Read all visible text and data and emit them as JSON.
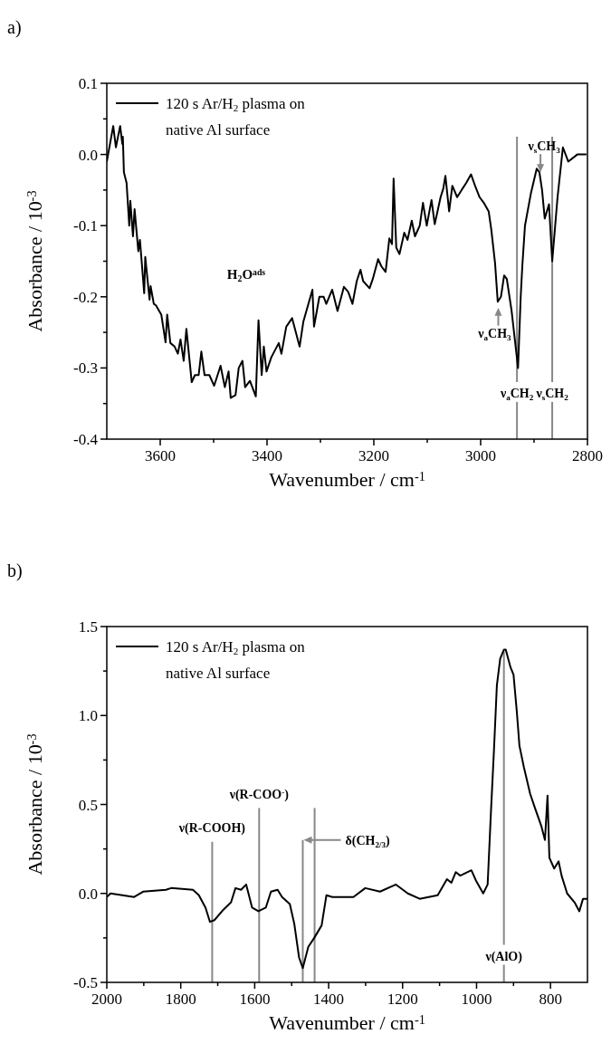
{
  "chart_data": [
    {
      "type": "line",
      "title": "a)",
      "xlabel": "Wavenumber / cm$^{-1}$",
      "ylabel": "Absorbance / 10$^{-3}$",
      "xlim": [
        3700,
        2800
      ],
      "ylim": [
        -0.4,
        0.1
      ],
      "xticks": [
        3600,
        {
          "value": 3500,
          "label": null
        },
        3400,
        {
          "value": 3300,
          "label": null
        },
        3200,
        {
          "value": 3100,
          "label": null
        },
        3000,
        {
          "value": 2900,
          "label": null
        },
        2800
      ],
      "yticks": [
        -0.4,
        {
          "value": -0.35,
          "label": null
        },
        -0.3,
        {
          "value": -0.25,
          "label": null
        },
        -0.2,
        {
          "value": -0.15,
          "label": null
        },
        -0.1,
        {
          "value": -0.05,
          "label": null
        },
        {
          "value": 0,
          "label": "0.0"
        },
        {
          "value": 0.05,
          "label": null
        },
        0.1
      ],
      "legend": "top left",
      "x": [
        3700,
        3688,
        3683,
        3675,
        3671,
        3670,
        3668,
        3663,
        3658,
        3656,
        3651,
        3648,
        3641,
        3638,
        3630,
        3628,
        3620,
        3618,
        3612,
        3608,
        3598,
        3590,
        3587,
        3581,
        3573,
        3567,
        3562,
        3556,
        3551,
        3541,
        3535,
        3528,
        3523,
        3517,
        3508,
        3499,
        3487,
        3479,
        3472,
        3468,
        3459,
        3453,
        3446,
        3441,
        3432,
        3421,
        3416,
        3410,
        3406,
        3401,
        3392,
        3378,
        3373,
        3364,
        3353,
        3339,
        3332,
        3315,
        3312,
        3302,
        3294,
        3289,
        3278,
        3268,
        3256,
        3248,
        3240,
        3232,
        3225,
        3220,
        3208,
        3202,
        3192,
        3186,
        3178,
        3171,
        3166,
        3163,
        3158,
        3152,
        3143,
        3137,
        3129,
        3123,
        3114,
        3108,
        3101,
        3092,
        3086,
        3075,
        3070,
        3066,
        3059,
        3053,
        3044,
        3034,
        3027,
        3018,
        3010,
        3002,
        2994,
        2985,
        2980,
        2973,
        2968,
        2962,
        2956,
        2951,
        2942,
        2930,
        2925,
        2922,
        2917,
        2906,
        2895,
        2890,
        2885,
        2880,
        2872,
        2866,
        2856,
        2846,
        2836,
        2819,
        2802
      ],
      "series": [
        {
          "name": "120 s Ar/H$_{2}$ plasma on native Al surface",
          "color": "#000000",
          "values": [
            -0.01,
            0.04,
            0.01,
            0.04,
            0.015,
            0.025,
            -0.025,
            -0.04,
            -0.1,
            -0.065,
            -0.115,
            -0.077,
            -0.136,
            -0.12,
            -0.195,
            -0.144,
            -0.204,
            -0.185,
            -0.21,
            -0.212,
            -0.225,
            -0.264,
            -0.225,
            -0.265,
            -0.27,
            -0.28,
            -0.26,
            -0.29,
            -0.245,
            -0.32,
            -0.31,
            -0.31,
            -0.277,
            -0.31,
            -0.31,
            -0.325,
            -0.297,
            -0.327,
            -0.305,
            -0.342,
            -0.338,
            -0.3,
            -0.29,
            -0.327,
            -0.318,
            -0.34,
            -0.233,
            -0.31,
            -0.27,
            -0.305,
            -0.285,
            -0.265,
            -0.28,
            -0.242,
            -0.23,
            -0.27,
            -0.235,
            -0.19,
            -0.242,
            -0.2,
            -0.2,
            -0.21,
            -0.19,
            -0.22,
            -0.186,
            -0.193,
            -0.21,
            -0.178,
            -0.162,
            -0.178,
            -0.188,
            -0.175,
            -0.147,
            -0.157,
            -0.165,
            -0.118,
            -0.126,
            -0.034,
            -0.131,
            -0.14,
            -0.11,
            -0.12,
            -0.093,
            -0.115,
            -0.1,
            -0.068,
            -0.1,
            -0.064,
            -0.098,
            -0.06,
            -0.048,
            -0.03,
            -0.08,
            -0.044,
            -0.06,
            -0.048,
            -0.04,
            -0.028,
            -0.045,
            -0.06,
            -0.068,
            -0.08,
            -0.106,
            -0.153,
            -0.207,
            -0.2,
            -0.17,
            -0.175,
            -0.22,
            -0.3,
            -0.2,
            -0.157,
            -0.1,
            -0.055,
            -0.02,
            -0.025,
            -0.05,
            -0.09,
            -0.07,
            -0.15,
            -0.06,
            0.01,
            -0.01,
            0.0,
            0.0
          ]
        }
      ],
      "ref_lines": [
        {
          "axis": "x",
          "value": 2932,
          "label": "ν$_{a}$CH$_{2}$",
          "color": "#888888"
        },
        {
          "axis": "x",
          "value": 2866,
          "label": "ν$_{s}$CH$_{2}$",
          "color": "#888888"
        }
      ],
      "annotations": [
        "H$_{2}$O$^{ads}$",
        {
          "text": "ν$_{a}$CH$_{3}$",
          "x": 2967,
          "y": -0.21
        },
        {
          "text": "ν$_{s}$CH$_{3}$",
          "x": 2888,
          "y": -0.03
        }
      ]
    },
    {
      "type": "line",
      "title": "b)",
      "xlabel": "Wavenumber / cm$^{-1}$",
      "ylabel": "Absorbance / 10$^{-3}$",
      "xlim": [
        2000,
        700
      ],
      "ylim": [
        -0.5,
        1.5
      ],
      "xticks": [
        2000,
        {
          "value": 1900,
          "label": null
        },
        1800,
        {
          "value": 1700,
          "label": null
        },
        1600,
        {
          "value": 1500,
          "label": null
        },
        1400,
        {
          "value": 1300,
          "label": null
        },
        1200,
        {
          "value": 1100,
          "label": null
        },
        1000,
        {
          "value": 900,
          "label": null
        },
        800
      ],
      "yticks": [
        -0.5,
        {
          "value": -0.25,
          "label": null
        },
        {
          "value": 0,
          "label": "0.0"
        },
        {
          "value": 0.25,
          "label": null
        },
        0.5,
        {
          "value": 0.75,
          "label": null
        },
        {
          "value": 1,
          "label": "1.0"
        },
        {
          "value": 1.25,
          "label": null
        },
        1.5
      ],
      "legend": "top left",
      "x": [
        2000,
        1990,
        1926,
        1902,
        1840,
        1826,
        1767,
        1751,
        1733,
        1721,
        1709,
        1684,
        1664,
        1652,
        1637,
        1623,
        1607,
        1590,
        1570,
        1556,
        1538,
        1526,
        1505,
        1493,
        1480,
        1470,
        1455,
        1439,
        1419,
        1406,
        1390,
        1333,
        1301,
        1261,
        1218,
        1186,
        1154,
        1105,
        1080,
        1068,
        1056,
        1044,
        1014,
        1001,
        982,
        970,
        961,
        953,
        945,
        936,
        926,
        921,
        908,
        900,
        891,
        884,
        872,
        855,
        842,
        825,
        815,
        808,
        803,
        790,
        778,
        770,
        755,
        735,
        722,
        712,
        700
      ],
      "series": [
        {
          "name": "120 s Ar/H$_{2}$ plasma on native Al surface",
          "color": "#000000",
          "values": [
            -0.02,
            0.0,
            -0.02,
            0.01,
            0.02,
            0.03,
            0.02,
            -0.01,
            -0.08,
            -0.16,
            -0.15,
            -0.09,
            -0.05,
            0.03,
            0.02,
            0.05,
            -0.08,
            -0.1,
            -0.08,
            0.01,
            0.02,
            -0.02,
            -0.06,
            -0.17,
            -0.36,
            -0.42,
            -0.3,
            -0.25,
            -0.18,
            -0.01,
            -0.02,
            -0.02,
            0.03,
            0.01,
            0.05,
            0.0,
            -0.03,
            -0.01,
            0.08,
            0.06,
            0.12,
            0.1,
            0.13,
            0.07,
            0.0,
            0.05,
            0.46,
            0.8,
            1.17,
            1.32,
            1.37,
            1.37,
            1.27,
            1.23,
            1.02,
            0.83,
            0.71,
            0.56,
            0.48,
            0.38,
            0.3,
            0.55,
            0.2,
            0.14,
            0.18,
            0.1,
            0.0,
            -0.05,
            -0.1,
            -0.03,
            -0.03
          ]
        }
      ],
      "ref_lines": [
        {
          "axis": "x",
          "value": 1715,
          "label": "ν(R-COOH)",
          "color": "#888888"
        },
        {
          "axis": "x",
          "value": 1588,
          "label": "ν(R-COO$^{-}$)",
          "color": "#888888"
        },
        {
          "axis": "x",
          "value": 1438,
          "label": null,
          "color": "#888888"
        },
        {
          "axis": "x",
          "value": 1470,
          "label": "δ(CH$_{2/3}$)",
          "color": "#888888"
        },
        {
          "axis": "x",
          "value": 926,
          "label": "ν(AlO)",
          "color": "#888888"
        }
      ]
    }
  ]
}
